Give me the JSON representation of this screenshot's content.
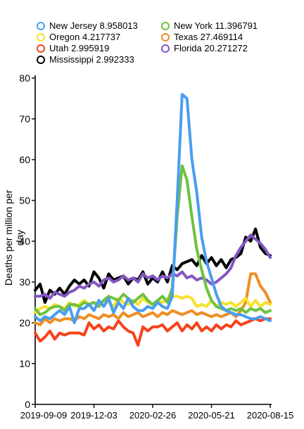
{
  "chart_data": {
    "type": "line",
    "ylabel": "Deaths per million per day",
    "xlabel": "",
    "ylim": [
      0,
      80
    ],
    "yticks": [
      0,
      10,
      20,
      30,
      40,
      50,
      60,
      70,
      80
    ],
    "x_tick_labels": [
      "2019-09-09",
      "2019-12-03",
      "2020-02-26",
      "2020-05-21",
      "2020-08-15"
    ],
    "x_tick_positions": [
      0,
      12,
      24,
      36,
      48
    ],
    "grid": false,
    "legend_position": "top",
    "series": [
      {
        "name": "New Jersey",
        "legend_value": "8.958013",
        "color": "#4a9df0",
        "values": [
          21.5,
          20.5,
          21.5,
          21.0,
          22.0,
          23.0,
          22.0,
          24.0,
          20.0,
          23.5,
          23.5,
          24.5,
          23.0,
          25.5,
          24.0,
          26.0,
          22.5,
          25.0,
          23.5,
          26.0,
          24.0,
          23.0,
          23.0,
          24.0,
          23.5,
          25.0,
          24.0,
          23.5,
          26.5,
          50.0,
          76.0,
          75.0,
          60.0,
          52.0,
          41.0,
          35.0,
          31.0,
          27.0,
          24.0,
          23.0,
          22.5,
          22.0,
          22.0,
          21.5,
          21.0,
          21.0,
          21.5,
          21.0,
          20.5
        ]
      },
      {
        "name": "Oregon",
        "legend_value": "4.217737",
        "color": "#f6e22d",
        "values": [
          22.5,
          23.5,
          24.0,
          23.5,
          24.5,
          24.0,
          23.5,
          25.0,
          24.0,
          24.5,
          25.5,
          24.5,
          25.0,
          24.0,
          25.5,
          25.0,
          24.0,
          26.0,
          25.0,
          24.5,
          25.5,
          24.5,
          26.0,
          25.0,
          24.5,
          25.5,
          25.0,
          26.0,
          26.5,
          26.5,
          26.0,
          26.5,
          26.0,
          24.0,
          24.5,
          24.0,
          25.5,
          24.0,
          25.0,
          24.5,
          25.0,
          24.0,
          25.0,
          26.0,
          24.0,
          25.5,
          24.0,
          25.0,
          24.5
        ]
      },
      {
        "name": "Utah",
        "legend_value": "2.995919",
        "color": "#f6421b",
        "values": [
          17.5,
          15.5,
          16.5,
          18.0,
          16.0,
          17.5,
          17.0,
          17.5,
          17.5,
          17.5,
          17.0,
          20.0,
          18.5,
          19.5,
          18.0,
          19.0,
          18.5,
          20.5,
          19.0,
          18.0,
          17.5,
          14.5,
          19.0,
          18.0,
          19.0,
          19.0,
          19.5,
          18.0,
          19.0,
          20.0,
          18.0,
          19.5,
          18.5,
          20.0,
          18.0,
          19.0,
          18.0,
          19.5,
          18.5,
          19.5,
          19.0,
          20.5,
          19.5,
          20.0,
          20.5,
          21.0,
          20.5,
          21.0,
          21.0
        ]
      },
      {
        "name": "Mississippi",
        "legend_value": "2.992333",
        "color": "#000000",
        "values": [
          28.0,
          29.5,
          25.0,
          28.0,
          27.0,
          28.5,
          27.0,
          29.0,
          30.5,
          29.5,
          30.5,
          29.0,
          32.5,
          31.0,
          28.5,
          32.0,
          30.5,
          31.0,
          31.5,
          29.5,
          31.0,
          30.5,
          32.5,
          29.5,
          31.0,
          30.0,
          32.5,
          30.0,
          34.0,
          33.0,
          34.5,
          35.0,
          35.5,
          34.0,
          36.5,
          34.5,
          36.0,
          34.0,
          35.5,
          33.5,
          35.5,
          36.0,
          37.0,
          41.0,
          40.0,
          43.0,
          38.5,
          37.0,
          36.5
        ]
      },
      {
        "name": "New York",
        "legend_value": "11.396791",
        "color": "#6fc23f",
        "values": [
          23.5,
          22.0,
          22.5,
          23.5,
          24.0,
          24.0,
          23.0,
          24.5,
          24.5,
          24.0,
          25.0,
          24.5,
          25.0,
          24.0,
          25.5,
          26.5,
          26.0,
          25.5,
          27.0,
          26.0,
          25.0,
          26.0,
          27.0,
          25.5,
          24.5,
          25.5,
          26.5,
          25.0,
          28.5,
          46.0,
          58.5,
          55.0,
          46.0,
          38.0,
          33.0,
          28.5,
          25.5,
          24.0,
          23.5,
          23.0,
          23.5,
          23.0,
          23.5,
          22.5,
          23.5,
          23.0,
          23.5,
          22.5,
          23.0
        ]
      },
      {
        "name": "Texas",
        "legend_value": "27.469114",
        "color": "#ef8e23",
        "values": [
          20.0,
          19.5,
          21.0,
          20.0,
          21.0,
          20.5,
          21.0,
          21.0,
          20.5,
          21.5,
          21.0,
          22.0,
          21.5,
          21.0,
          22.0,
          21.5,
          22.0,
          21.0,
          22.5,
          21.5,
          22.0,
          22.5,
          21.5,
          22.0,
          22.5,
          21.5,
          22.5,
          22.0,
          23.0,
          22.5,
          22.0,
          22.5,
          23.0,
          22.0,
          22.5,
          22.0,
          21.5,
          22.0,
          21.5,
          22.0,
          22.5,
          21.5,
          23.0,
          25.0,
          32.0,
          32.0,
          29.0,
          27.5,
          25.0
        ]
      },
      {
        "name": "Florida",
        "legend_value": "20.271272",
        "color": "#8456c3",
        "values": [
          26.5,
          26.5,
          27.0,
          26.0,
          27.5,
          27.0,
          26.5,
          27.5,
          28.0,
          29.0,
          28.5,
          29.5,
          30.0,
          29.0,
          30.5,
          31.0,
          30.0,
          30.5,
          31.5,
          30.5,
          31.0,
          30.0,
          32.0,
          31.0,
          31.5,
          30.5,
          31.5,
          31.0,
          32.0,
          31.5,
          32.5,
          31.0,
          31.5,
          30.5,
          31.0,
          30.5,
          29.5,
          30.0,
          31.0,
          32.0,
          33.5,
          36.5,
          38.5,
          40.0,
          41.5,
          40.5,
          39.5,
          38.0,
          36.0
        ]
      }
    ]
  }
}
